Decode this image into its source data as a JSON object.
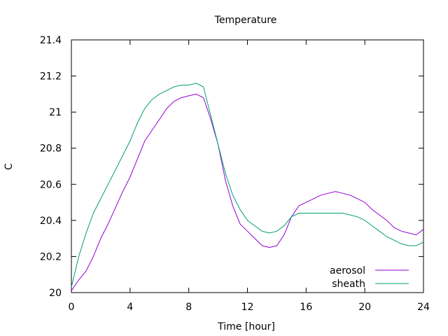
{
  "chart_data": {
    "type": "line",
    "title": "Temperature",
    "xlabel": "Time [hour]",
    "ylabel": "C",
    "xlim": [
      0,
      24
    ],
    "ylim": [
      20,
      21.4
    ],
    "x_ticks": [
      0,
      4,
      8,
      12,
      16,
      20,
      24
    ],
    "x_tick_labels": [
      "0",
      "4",
      "8",
      "12",
      "16",
      "20",
      "24"
    ],
    "y_ticks": [
      20,
      20.2,
      20.4,
      20.6,
      20.8,
      21,
      21.2,
      21.4
    ],
    "y_tick_labels": [
      "20",
      "20.2",
      "20.4",
      "20.6",
      "20.8",
      "21",
      "21.2",
      "21.4"
    ],
    "grid": false,
    "legend_position": "bottom-right",
    "series": [
      {
        "name": "aerosol",
        "color": "#9400d3",
        "x": [
          0,
          0.5,
          1,
          1.5,
          2,
          2.5,
          3,
          3.5,
          4,
          4.5,
          5,
          5.5,
          6,
          6.5,
          7,
          7.5,
          8,
          8.5,
          9,
          9.5,
          10,
          10.5,
          11,
          11.5,
          12,
          12.5,
          13,
          13.5,
          14,
          14.5,
          15,
          15.5,
          16,
          16.5,
          17,
          17.5,
          18,
          18.5,
          19,
          19.5,
          20,
          20.5,
          21,
          21.5,
          22,
          22.5,
          23,
          23.5,
          24
        ],
        "y": [
          20.01,
          20.07,
          20.12,
          20.2,
          20.3,
          20.38,
          20.47,
          20.56,
          20.64,
          20.74,
          20.84,
          20.9,
          20.96,
          21.02,
          21.06,
          21.08,
          21.09,
          21.1,
          21.08,
          20.96,
          20.82,
          20.62,
          20.48,
          20.38,
          20.34,
          20.3,
          20.26,
          20.25,
          20.26,
          20.32,
          20.42,
          20.48,
          20.5,
          20.52,
          20.54,
          20.55,
          20.56,
          20.55,
          20.54,
          20.52,
          20.5,
          20.46,
          20.43,
          20.4,
          20.36,
          20.34,
          20.33,
          20.32,
          20.35
        ]
      },
      {
        "name": "sheath",
        "color": "#009e73",
        "x": [
          0,
          0.5,
          1,
          1.5,
          2,
          2.5,
          3,
          3.5,
          4,
          4.5,
          5,
          5.5,
          6,
          6.5,
          7,
          7.5,
          8,
          8.5,
          9,
          9.5,
          10,
          10.5,
          11,
          11.5,
          12,
          12.5,
          13,
          13.5,
          14,
          14.5,
          15,
          15.5,
          16,
          16.5,
          17,
          17.5,
          18,
          18.5,
          19,
          19.5,
          20,
          20.5,
          21,
          21.5,
          22,
          22.5,
          23,
          23.5,
          24
        ],
        "y": [
          20.03,
          20.2,
          20.33,
          20.44,
          20.52,
          20.6,
          20.68,
          20.76,
          20.84,
          20.94,
          21.02,
          21.07,
          21.1,
          21.12,
          21.14,
          21.15,
          21.15,
          21.16,
          21.14,
          20.98,
          20.82,
          20.66,
          20.54,
          20.46,
          20.4,
          20.37,
          20.34,
          20.33,
          20.34,
          20.37,
          20.42,
          20.44,
          20.44,
          20.44,
          20.44,
          20.44,
          20.44,
          20.44,
          20.43,
          20.42,
          20.4,
          20.37,
          20.34,
          20.31,
          20.29,
          20.27,
          20.26,
          20.26,
          20.28
        ]
      }
    ]
  }
}
